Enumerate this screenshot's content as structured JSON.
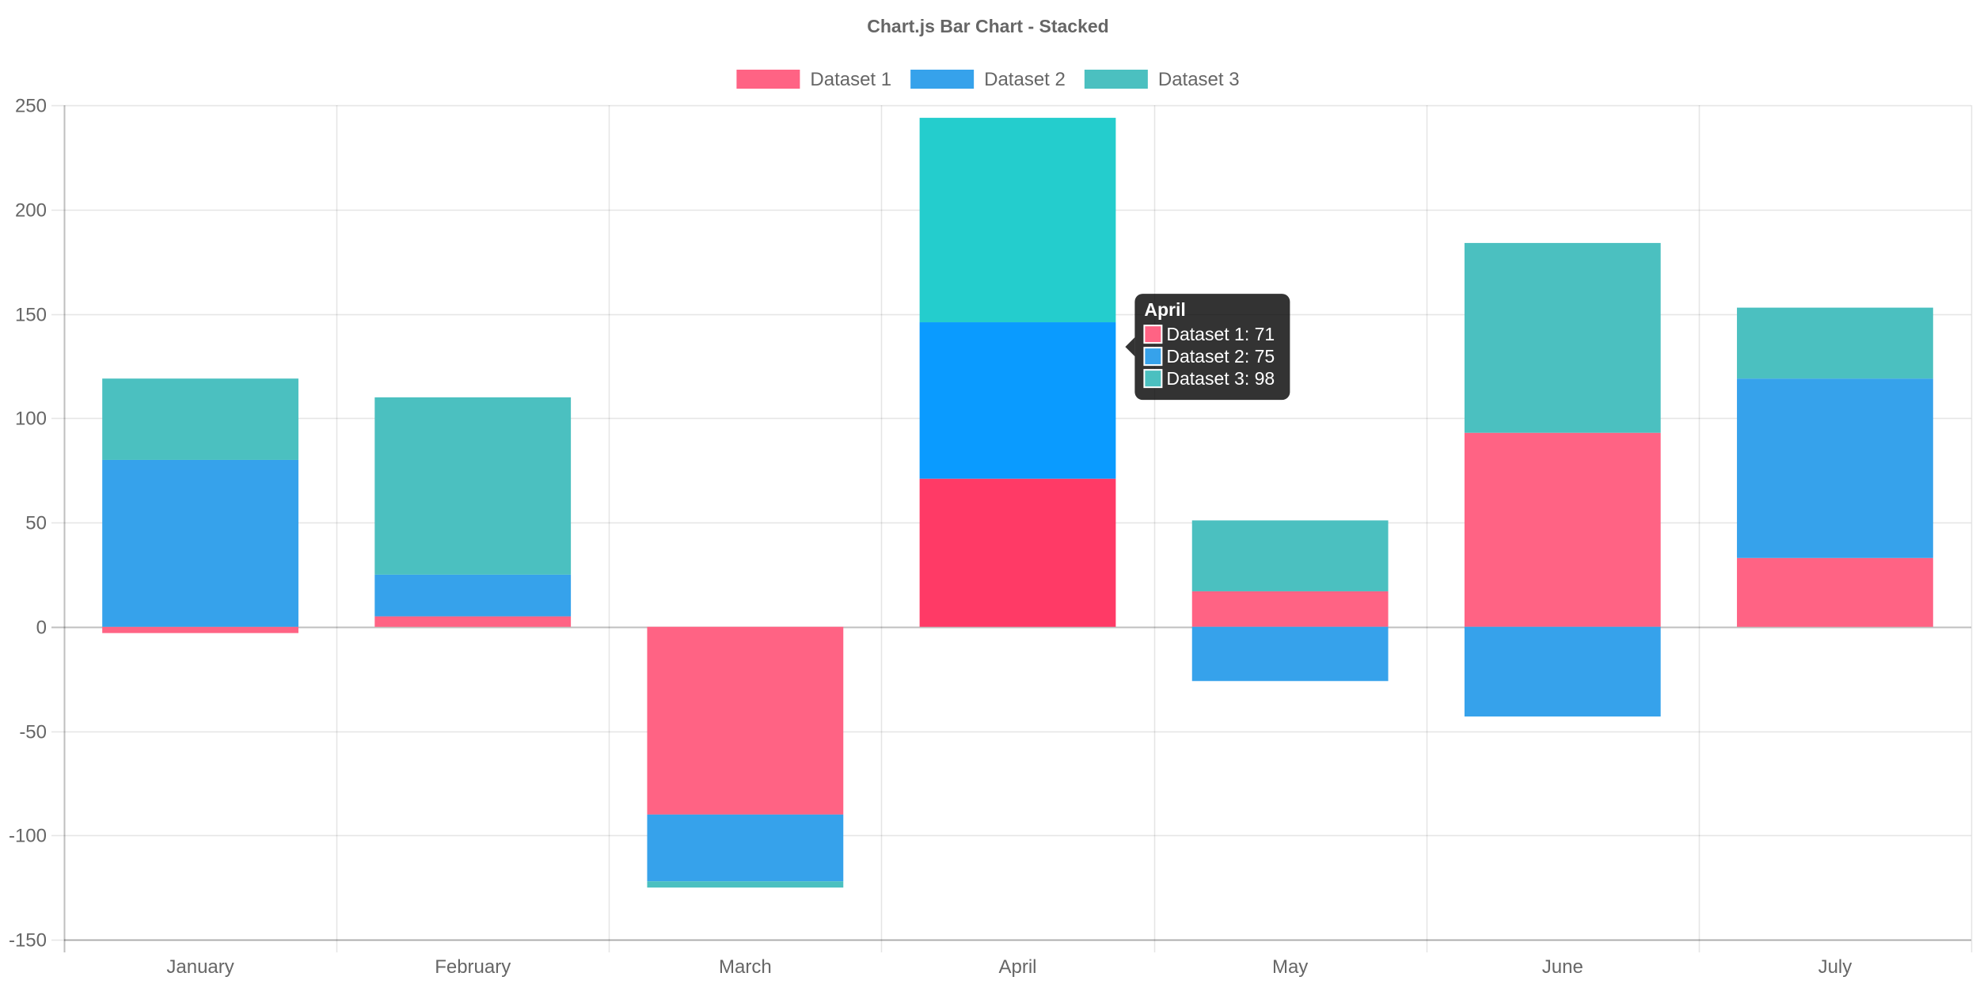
{
  "chart_data": {
    "type": "bar",
    "stacked": true,
    "title": "Chart.js Bar Chart - Stacked",
    "categories": [
      "January",
      "February",
      "March",
      "April",
      "May",
      "June",
      "July"
    ],
    "series": [
      {
        "name": "Dataset 1",
        "color": "#ff6384",
        "hover_color": "#ff3a66",
        "values": [
          -3,
          5,
          -90,
          71,
          17,
          93,
          33
        ]
      },
      {
        "name": "Dataset 2",
        "color": "#36a2eb",
        "hover_color": "#0a9bff",
        "values": [
          80,
          20,
          -32,
          75,
          -26,
          -43,
          86
        ]
      },
      {
        "name": "Dataset 3",
        "color": "#4bc0c0",
        "hover_color": "#24cdcd",
        "values": [
          39,
          85,
          -3,
          98,
          34,
          91,
          34
        ]
      }
    ],
    "ylim": [
      -150,
      250
    ],
    "y_ticks": [
      250,
      200,
      150,
      100,
      50,
      0,
      -50,
      -100,
      -150
    ],
    "xlabel": "",
    "ylabel": "",
    "grid": true,
    "legend": "top",
    "tooltip": {
      "category": "April",
      "lines": [
        "Dataset 1: 71",
        "Dataset 2: 75",
        "Dataset 3: 98"
      ]
    }
  }
}
